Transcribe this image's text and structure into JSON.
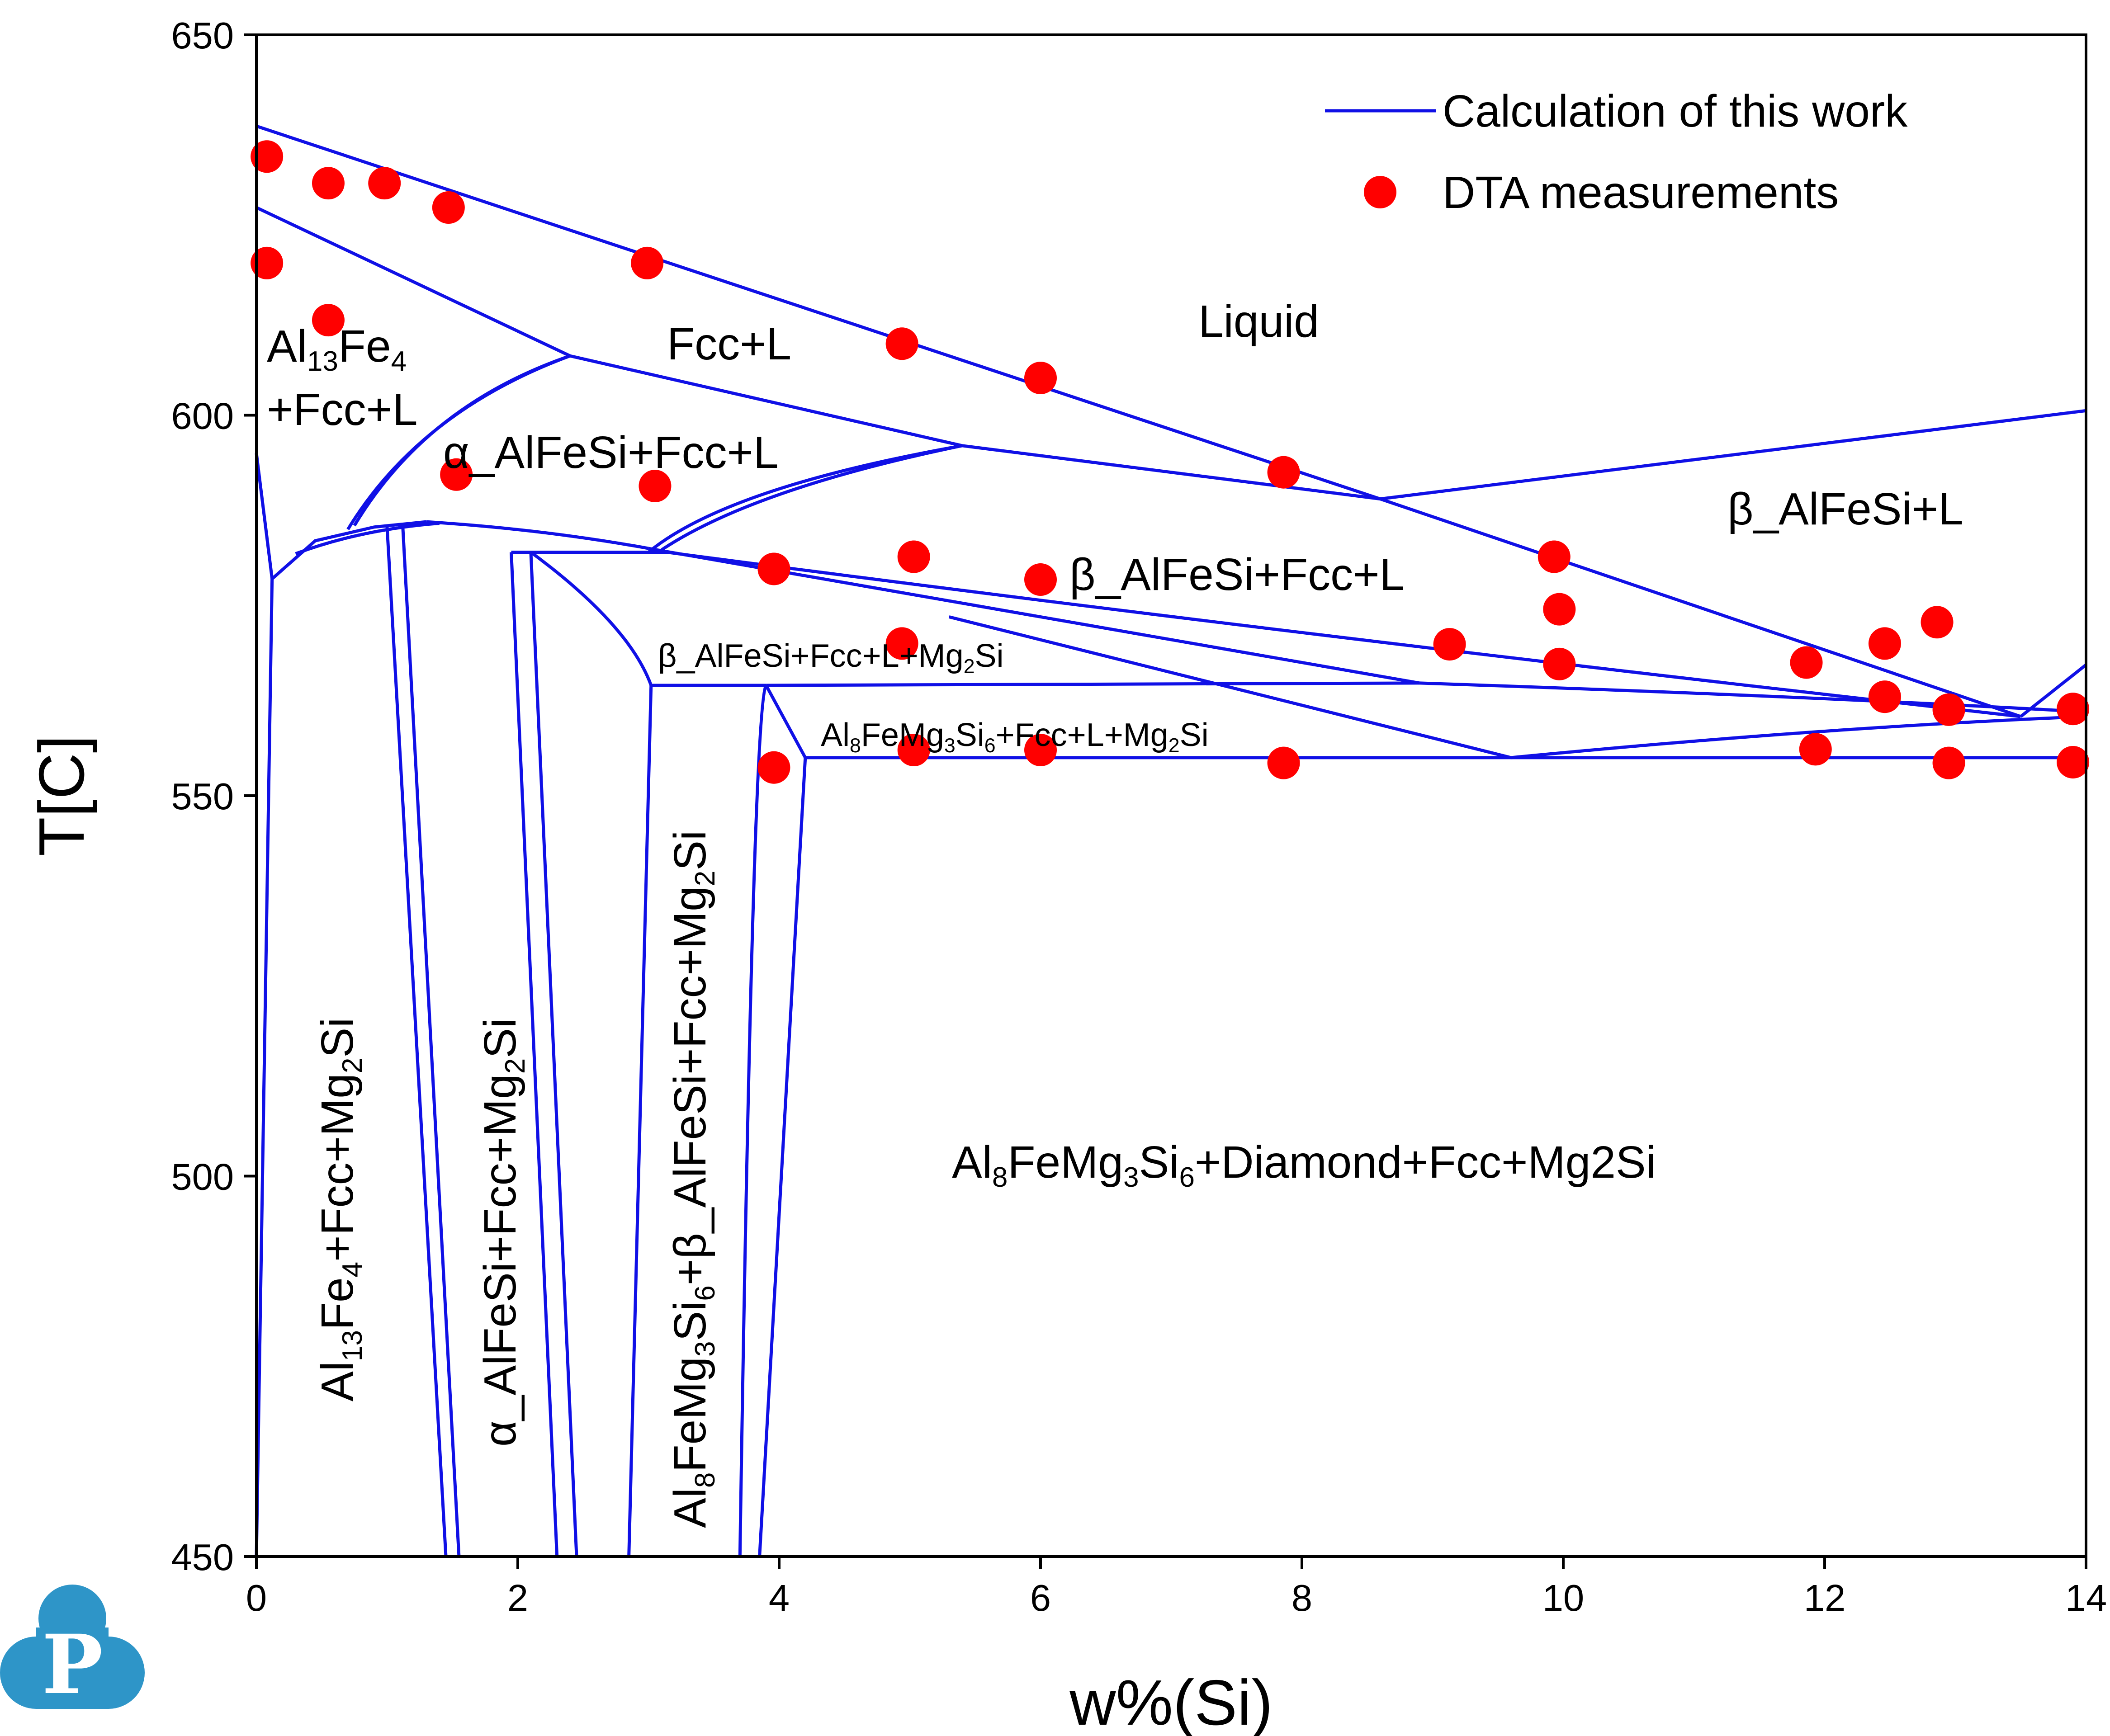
{
  "chart_data": {
    "type": "line",
    "xlabel": "w%(Si)",
    "ylabel": "T[C]",
    "xlim": [
      0,
      14
    ],
    "ylim": [
      450,
      650
    ],
    "x_ticks": [
      0,
      2,
      4,
      6,
      8,
      10,
      12,
      14
    ],
    "y_ticks": [
      450,
      500,
      550,
      600,
      650
    ],
    "x_tick_labels": [
      "0",
      "2",
      "4",
      "6",
      "8",
      "10",
      "12",
      "14"
    ],
    "y_tick_labels": [
      "450",
      "500",
      "550",
      "600",
      "650"
    ],
    "grid": false,
    "legend_position": "top-right",
    "colors": {
      "line": "#1010e6",
      "points": "#ff0000",
      "logo": "#2e95c8"
    },
    "series": [
      {
        "name": "Calculation of this work",
        "kind": "line",
        "segments": [
          [
            [
              0,
              638
            ],
            [
              8.6,
              589
            ]
          ],
          [
            [
              8.6,
              589
            ],
            [
              13.5,
              560.4
            ]
          ],
          [
            [
              13.5,
              560.4
            ],
            [
              14,
              567.2
            ]
          ],
          [
            [
              8.6,
              589
            ],
            [
              14,
              600.6
            ]
          ],
          [
            [
              0,
              627.3
            ],
            [
              2.4,
              607.8
            ]
          ],
          [
            [
              2.4,
              607.8
            ],
            [
              5.4,
              596
            ]
          ],
          [
            [
              5.4,
              596
            ],
            [
              8.6,
              589
            ]
          ],
          [
            [
              2.4,
              607.8
            ],
            [
              1.25,
              600.5
            ],
            [
              0.7,
              585
            ]
          ],
          [
            [
              2.4,
              607.8
            ],
            [
              1.3,
              601.3
            ],
            [
              0.75,
              585.5
            ]
          ],
          [
            [
              5.4,
              596
            ],
            [
              3.6,
              590.5
            ],
            [
              3,
              582
            ]
          ],
          [
            [
              5.4,
              596
            ],
            [
              3.8,
              590.3
            ],
            [
              3.1,
              582.3
            ]
          ],
          [
            [
              0,
              595
            ],
            [
              0.12,
              578.5
            ]
          ],
          [
            [
              0.12,
              578.5
            ],
            [
              0,
              450
            ]
          ],
          [
            [
              0.12,
              578.5
            ],
            [
              0.45,
              583.5
            ],
            [
              0.9,
              585.3
            ],
            [
              1.3,
              586
            ]
          ],
          [
            [
              0.3,
              581.8
            ],
            [
              0.8,
              585
            ],
            [
              1.4,
              585.8
            ]
          ],
          [
            [
              1.3,
              586
            ],
            [
              2.2,
              585
            ],
            [
              3,
              582.5
            ]
          ],
          [
            [
              3,
              582.5
            ],
            [
              6,
              573.5
            ],
            [
              8.9,
              564.8
            ]
          ],
          [
            [
              8.9,
              564.8
            ],
            [
              12,
              563
            ],
            [
              14,
              561
            ]
          ],
          [
            [
              1.95,
              582
            ],
            [
              3.15,
              582
            ]
          ],
          [
            [
              2.1,
              582
            ],
            [
              2.85,
              572.5
            ],
            [
              3.02,
              564.5
            ]
          ],
          [
            [
              3.02,
              564.5
            ],
            [
              3.9,
              564.5
            ]
          ],
          [
            [
              3.9,
              564.5
            ],
            [
              8.9,
              564.8
            ]
          ],
          [
            [
              1.95,
              582
            ],
            [
              2.3,
              450
            ]
          ],
          [
            [
              2.1,
              582
            ],
            [
              2.45,
              450
            ]
          ],
          [
            [
              3.02,
              564.5
            ],
            [
              2.85,
              450
            ]
          ],
          [
            [
              3.9,
              564.5
            ],
            [
              3.8,
              562
            ],
            [
              3.7,
              450
            ]
          ],
          [
            [
              3.9,
              564.5
            ],
            [
              4.2,
              555
            ]
          ],
          [
            [
              4.2,
              555
            ],
            [
              3.85,
              450
            ]
          ],
          [
            [
              1.0,
              585.3
            ],
            [
              1.45,
              450
            ]
          ],
          [
            [
              1.12,
              585.4
            ],
            [
              1.55,
              450
            ]
          ],
          [
            [
              4.2,
              555
            ],
            [
              14,
              555
            ]
          ],
          [
            [
              5.3,
              573.5
            ],
            [
              9.6,
              555
            ]
          ],
          [
            [
              9.6,
              555
            ],
            [
              12,
              559
            ],
            [
              14,
              560.4
            ]
          ],
          [
            [
              3.05,
              582.2
            ],
            [
              8.0,
              571
            ],
            [
              13.5,
              560.4
            ]
          ]
        ]
      },
      {
        "name": "DTA measurements",
        "kind": "scatter",
        "points": [
          [
            0.08,
            634
          ],
          [
            0.55,
            630.5
          ],
          [
            0.98,
            630.5
          ],
          [
            1.47,
            627.3
          ],
          [
            0.08,
            620
          ],
          [
            0.55,
            612.5
          ],
          [
            2.99,
            620
          ],
          [
            4.94,
            609.4
          ],
          [
            6.0,
            604.9
          ],
          [
            7.86,
            592.5
          ],
          [
            1.53,
            592.2
          ],
          [
            3.05,
            590.7
          ],
          [
            3.96,
            579.8
          ],
          [
            5.03,
            581.4
          ],
          [
            6.0,
            578.4
          ],
          [
            9.93,
            581.4
          ],
          [
            9.97,
            574.5
          ],
          [
            4.94,
            570
          ],
          [
            9.13,
            569.9
          ],
          [
            9.97,
            567.3
          ],
          [
            11.86,
            567.5
          ],
          [
            12.46,
            570
          ],
          [
            12.86,
            572.8
          ],
          [
            12.46,
            563
          ],
          [
            12.95,
            561.3
          ],
          [
            13.9,
            561.4
          ],
          [
            3.96,
            553.7
          ],
          [
            5.03,
            556
          ],
          [
            6.0,
            556
          ],
          [
            7.86,
            554.3
          ],
          [
            11.93,
            556.1
          ],
          [
            12.95,
            554.3
          ],
          [
            13.9,
            554.4
          ]
        ]
      }
    ],
    "annotations": {
      "liquid": "Liquid",
      "fcc_l": "Fcc+L",
      "al13_a": "Al",
      "al13_a_sub": "13",
      "al13_b": "Fe",
      "al13_b_sub": "4",
      "al13_c": "+Fcc+L",
      "alpha_fcc_l": "α_AlFeSi+Fcc+L",
      "beta_l": "β_AlFeSi+L",
      "beta_fcc_l": "β_AlFeSi+Fcc+L",
      "beta_mg2si_a": "β_AlFeSi+Fcc+L+Mg",
      "beta_mg2si_sub": "2",
      "beta_mg2si_b": "Si",
      "al8_mg2si_a": "Al",
      "al8_mg2si_sub1": "8",
      "al8_mg2si_b": "FeMg",
      "al8_mg2si_sub2": "3",
      "al8_mg2si_c": "Si",
      "al8_mg2si_sub3": "6",
      "al8_mg2si_d": "+Fcc+L+Mg",
      "al8_mg2si_sub4": "2",
      "al8_mg2si_e": "Si",
      "bottom_a": "Al",
      "bottom_sub1": "8",
      "bottom_b": "FeMg",
      "bottom_sub2": "3",
      "bottom_c": "Si",
      "bottom_sub3": "6",
      "bottom_d": "+Diamond+Fcc+Mg2Si",
      "v1_a": "Al",
      "v1_sub1": "13",
      "v1_b": "Fe",
      "v1_sub2": "4",
      "v1_c": "+Fcc+Mg",
      "v1_sub3": "2",
      "v1_d": "Si",
      "v2_a": "α_AlFeSi+Fcc+Mg",
      "v2_sub": "2",
      "v2_b": "Si",
      "v3_a": "Al",
      "v3_sub1": "8",
      "v3_b": "FeMg",
      "v3_sub2": "3",
      "v3_c": "Si",
      "v3_sub3": "6",
      "v3_d": "+β_AlFeSi+Fcc+Mg",
      "v3_sub4": "2",
      "v3_e": "Si"
    }
  },
  "logo": {
    "letter": "P"
  }
}
